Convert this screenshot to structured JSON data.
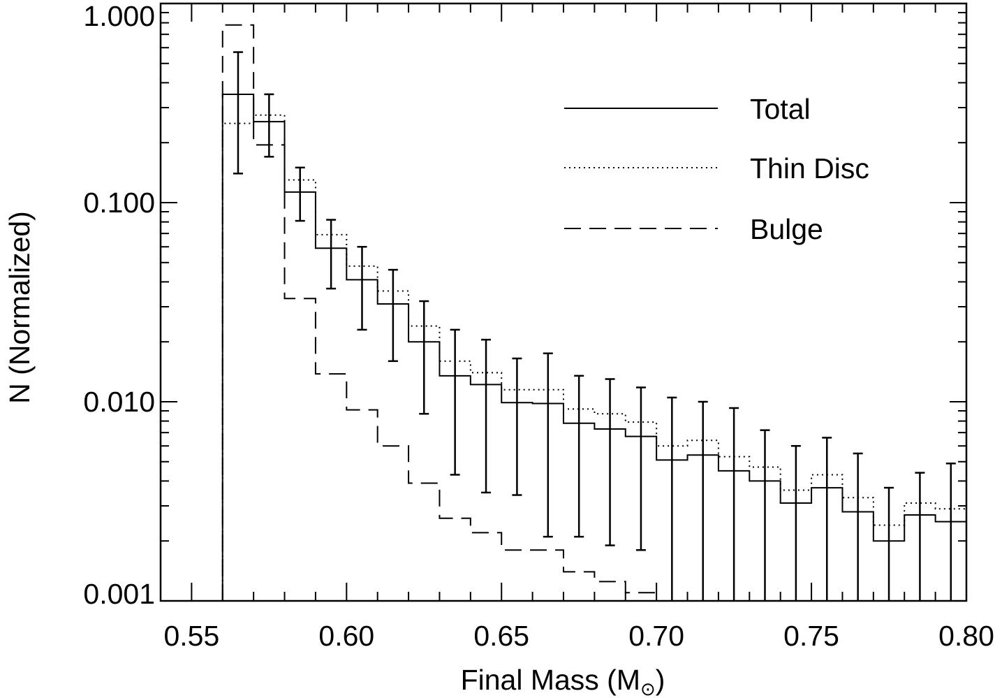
{
  "chart_data": {
    "type": "line",
    "title": "",
    "xlabel": "Final Mass (M",
    "xlabel_sub": "⊙",
    "xlabel_end": ")",
    "ylabel": "N (Normalized)",
    "xlim": [
      0.54,
      0.8
    ],
    "ylim": [
      0.001,
      1.0
    ],
    "yscale": "log",
    "legend_position": "top-right",
    "x_ticks": [
      0.55,
      0.6,
      0.65,
      0.7,
      0.75,
      0.8
    ],
    "x_tick_labels": [
      "0.55",
      "0.60",
      "0.65",
      "0.70",
      "0.75",
      "0.80"
    ],
    "y_ticks": [
      0.001,
      0.01,
      0.1,
      1.0
    ],
    "y_tick_labels": [
      "0.001",
      "0.010",
      "0.100",
      "1.000"
    ],
    "bin_edges": [
      0.56,
      0.57,
      0.58,
      0.59,
      0.6,
      0.61,
      0.62,
      0.63,
      0.64,
      0.65,
      0.66,
      0.67,
      0.68,
      0.69,
      0.7,
      0.71,
      0.72,
      0.73,
      0.74,
      0.75,
      0.76,
      0.77,
      0.78,
      0.79,
      0.8
    ],
    "series": [
      {
        "name": "Total",
        "style": "solid",
        "values": [
          0.35,
          0.255,
          0.113,
          0.059,
          0.041,
          0.031,
          0.02,
          0.0135,
          0.0122,
          0.0099,
          0.0098,
          0.0078,
          0.0073,
          0.0067,
          0.0051,
          0.0054,
          0.0045,
          0.004,
          0.0031,
          0.0037,
          0.0028,
          0.002,
          0.0027,
          0.0025
        ],
        "error_low": [
          0.14,
          0.17,
          0.081,
          0.037,
          0.023,
          0.016,
          0.0087,
          0.0043,
          0.0035,
          0.0034,
          0.0021,
          0.0021,
          0.0019,
          0.0018,
          0.001,
          0.001,
          0.001,
          0.001,
          0.001,
          0.001,
          0.001,
          0.001,
          0.001,
          0.001
        ],
        "error_high": [
          0.57,
          0.35,
          0.15,
          0.082,
          0.06,
          0.046,
          0.032,
          0.023,
          0.0205,
          0.0165,
          0.0175,
          0.0135,
          0.013,
          0.0118,
          0.0105,
          0.01,
          0.0093,
          0.0072,
          0.006,
          0.0066,
          0.0055,
          0.0037,
          0.0044,
          0.0049
        ]
      },
      {
        "name": "Thin Disc",
        "style": "dotted",
        "values": [
          0.25,
          0.275,
          0.13,
          0.069,
          0.048,
          0.036,
          0.024,
          0.016,
          0.014,
          0.0115,
          0.0115,
          0.0092,
          0.0087,
          0.0079,
          0.006,
          0.0064,
          0.0053,
          0.0047,
          0.0036,
          0.0043,
          0.0033,
          0.0024,
          0.0031,
          0.0029
        ]
      },
      {
        "name": "Bulge",
        "style": "dashed",
        "values": [
          0.78,
          0.195,
          0.033,
          0.0138,
          0.0091,
          0.006,
          0.0039,
          0.0026,
          0.0022,
          0.0018,
          0.0018,
          0.0014,
          0.00125,
          0.0011,
          null,
          null,
          null,
          null,
          null,
          null,
          null,
          null,
          null,
          null
        ]
      }
    ]
  }
}
